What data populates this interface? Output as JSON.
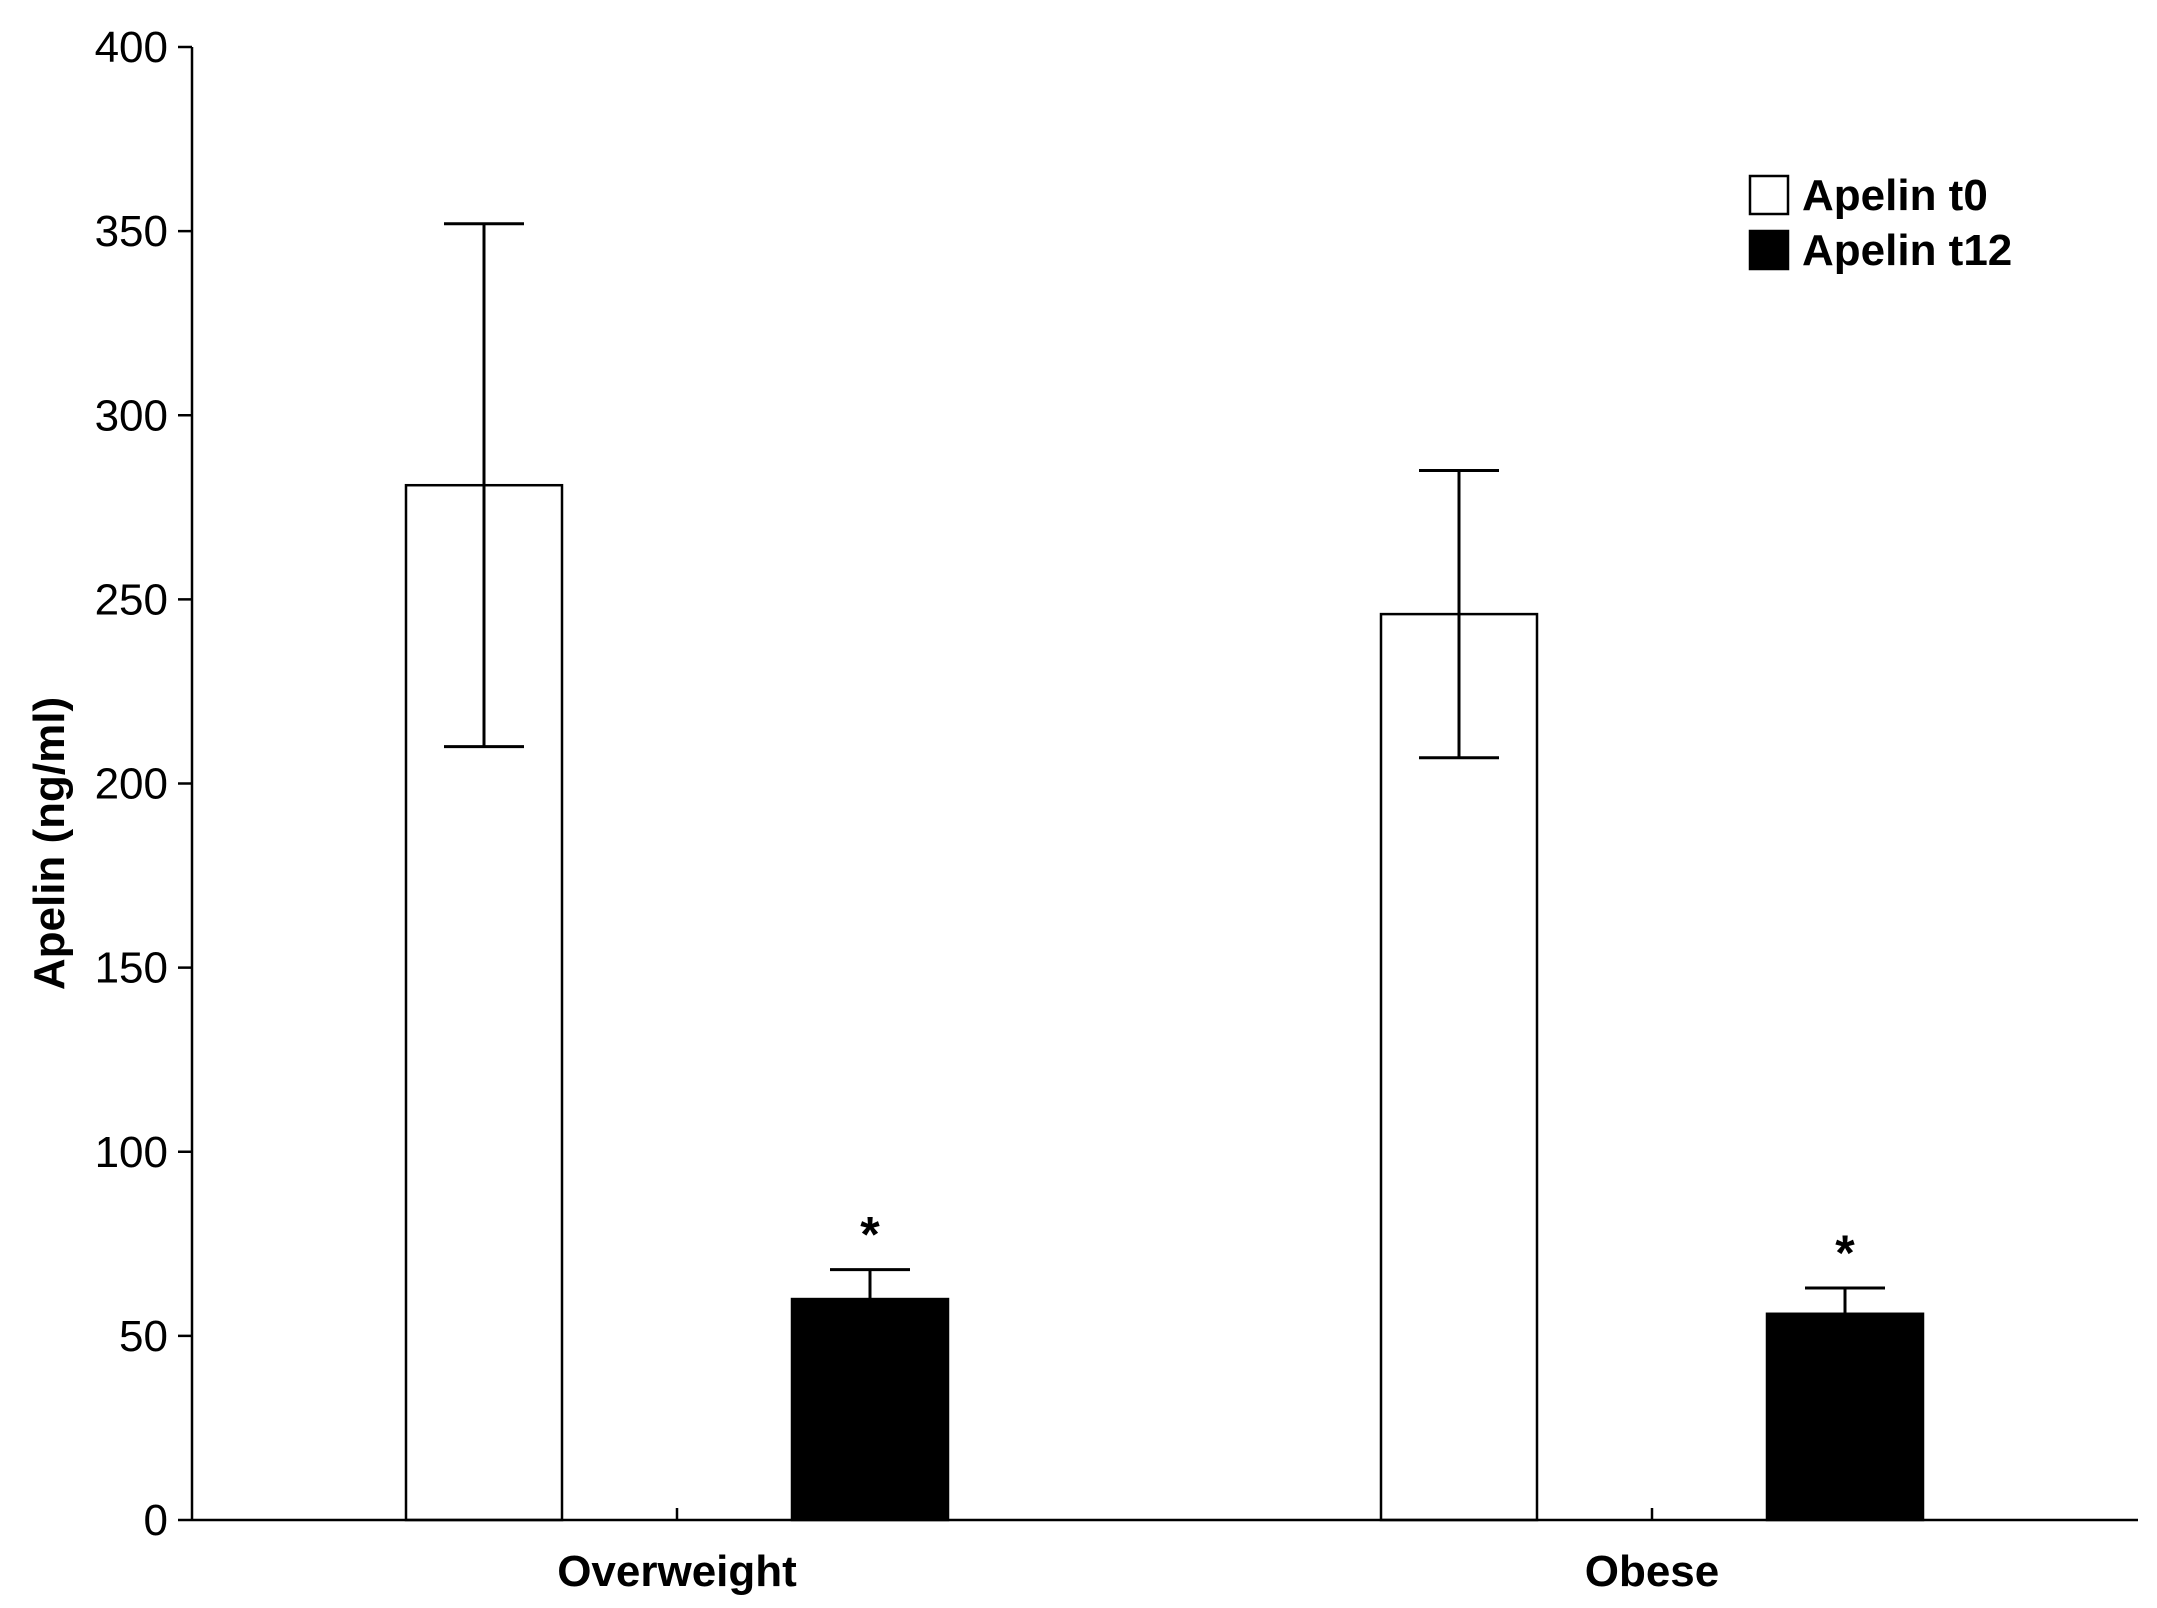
{
  "chart_data": {
    "type": "bar",
    "title": "",
    "xlabel": "",
    "ylabel": "Apelin (ng/ml)",
    "ylim": [
      0,
      400
    ],
    "yticks": [
      "0",
      "50",
      "100",
      "150",
      "200",
      "250",
      "300",
      "350",
      "400"
    ],
    "categories": [
      "Overweight",
      "Obese"
    ],
    "series": [
      {
        "name": "Apelin t0",
        "color": "#ffffff",
        "values": [
          281,
          246
        ],
        "error_low": [
          210,
          207
        ],
        "error_high": [
          352,
          285
        ],
        "annotations": [
          "",
          ""
        ]
      },
      {
        "name": "Apelin t12",
        "color": "#000000",
        "values": [
          60,
          56
        ],
        "error_low": [
          60,
          56
        ],
        "error_high": [
          68,
          63
        ],
        "annotations": [
          "*",
          "*"
        ]
      }
    ],
    "grid": false,
    "legend_position": "top-right"
  }
}
